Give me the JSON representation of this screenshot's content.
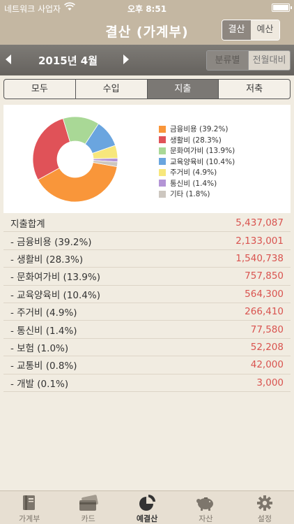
{
  "status_bar": {
    "carrier": "네트워크 사업자",
    "wifi_icon": "wifi-icon",
    "time": "오후 8:51",
    "battery_icon": "battery-icon"
  },
  "nav": {
    "title": "결산 (가계부)",
    "segments": [
      "결산",
      "예산"
    ],
    "active_segment": "결산"
  },
  "month_bar": {
    "month_label": "2015년 4월",
    "prev_icon": "chevron-left-icon",
    "next_icon": "chevron-right-icon",
    "view_segments": [
      "분류별",
      "전월대비"
    ]
  },
  "filters": {
    "items": [
      "모두",
      "수입",
      "지출",
      "저축"
    ],
    "selected": "지출"
  },
  "chart_data": {
    "type": "pie",
    "donut": true,
    "categories": [
      "금융비용",
      "생활비",
      "문화여가비",
      "교육양육비",
      "주거비",
      "통신비",
      "기타"
    ],
    "values": [
      39.2,
      28.3,
      13.9,
      10.4,
      4.9,
      1.4,
      1.8
    ],
    "colors": [
      "#f9963a",
      "#e05258",
      "#a9d896",
      "#6aa5df",
      "#f7e77c",
      "#b495d6",
      "#cdc7c0"
    ],
    "legend": [
      "금융비용 (39.2%)",
      "생활비 (28.3%)",
      "문화여가비 (13.9%)",
      "교육양육비 (10.4%)",
      "주거비 (4.9%)",
      "통신비 (1.4%)",
      "기타 (1.8%)"
    ],
    "legend_position": "right"
  },
  "table": {
    "total_label": "지출합계",
    "total_value": "5,437,087",
    "rows": [
      {
        "label": "- 금융비용 (39.2%)",
        "value": "2,133,001"
      },
      {
        "label": "- 생활비 (28.3%)",
        "value": "1,540,738"
      },
      {
        "label": "- 문화여가비 (13.9%)",
        "value": "757,850"
      },
      {
        "label": "- 교육양육비 (10.4%)",
        "value": "564,300"
      },
      {
        "label": "- 주거비 (4.9%)",
        "value": "266,410"
      },
      {
        "label": "- 통신비 (1.4%)",
        "value": "77,580"
      },
      {
        "label": "- 보험 (1.0%)",
        "value": "52,208"
      },
      {
        "label": "- 교통비 (0.8%)",
        "value": "42,000"
      },
      {
        "label": "- 개발 (0.1%)",
        "value": "3,000"
      }
    ],
    "value_color": "#d9534f"
  },
  "tab_bar": {
    "items": [
      {
        "label": "가계부",
        "icon": "book-icon"
      },
      {
        "label": "카드",
        "icon": "card-icon"
      },
      {
        "label": "예결산",
        "icon": "pie-chart-icon"
      },
      {
        "label": "자산",
        "icon": "piggy-bank-icon"
      },
      {
        "label": "설정",
        "icon": "gear-icon"
      }
    ],
    "active": "예결산"
  }
}
